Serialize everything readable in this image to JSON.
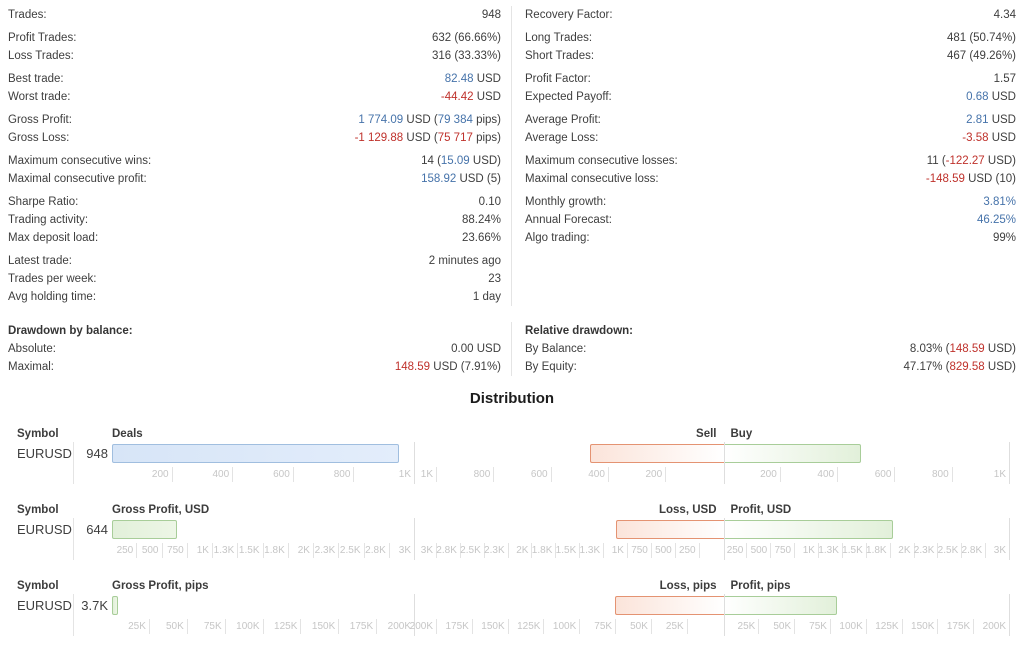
{
  "colors": {
    "accent_blue": "#4673aa",
    "accent_red": "#bf312b",
    "text": "#3e3e3e",
    "tick_label": "#c6c6c6",
    "divider": "#e4e4e4",
    "deals_bar_fill": "#dce9f8",
    "deals_bar_border": "#a0bedf",
    "profit_bar_fill": "#e6f2de",
    "profit_bar_border": "#a8cd99",
    "loss_bar_fill": "#fbe4da",
    "loss_bar_border": "#e49372"
  },
  "stats": {
    "bands": [
      {
        "rows": [
          {
            "group_start": false,
            "left": {
              "label": "Trades:",
              "parts": [
                {
                  "t": "948"
                }
              ]
            },
            "right": {
              "label": "Recovery Factor:",
              "parts": [
                {
                  "t": "4.34"
                }
              ]
            }
          },
          {
            "group_start": true,
            "left": {
              "label": "Profit Trades:",
              "parts": [
                {
                  "t": "632 (66.66%)"
                }
              ]
            },
            "right": {
              "label": "Long Trades:",
              "parts": [
                {
                  "t": "481 (50.74%)"
                }
              ]
            }
          },
          {
            "group_start": false,
            "left": {
              "label": "Loss Trades:",
              "parts": [
                {
                  "t": "316 (33.33%)"
                }
              ]
            },
            "right": {
              "label": "Short Trades:",
              "parts": [
                {
                  "t": "467 (49.26%)"
                }
              ]
            }
          },
          {
            "group_start": true,
            "left": {
              "label": "Best trade:",
              "parts": [
                {
                  "t": "82.48",
                  "c": "b"
                },
                {
                  "t": " USD"
                }
              ]
            },
            "right": {
              "label": "Profit Factor:",
              "parts": [
                {
                  "t": "1.57"
                }
              ]
            }
          },
          {
            "group_start": false,
            "left": {
              "label": "Worst trade:",
              "parts": [
                {
                  "t": "-44.42",
                  "c": "r"
                },
                {
                  "t": " USD"
                }
              ]
            },
            "right": {
              "label": "Expected Payoff:",
              "parts": [
                {
                  "t": "0.68",
                  "c": "b"
                },
                {
                  "t": " USD"
                }
              ]
            }
          },
          {
            "group_start": true,
            "left": {
              "label": "Gross Profit:",
              "parts": [
                {
                  "t": "1 774.09",
                  "c": "b"
                },
                {
                  "t": " USD ("
                },
                {
                  "t": "79 384",
                  "c": "b"
                },
                {
                  "t": " pips)"
                }
              ]
            },
            "right": {
              "label": "Average Profit:",
              "parts": [
                {
                  "t": "2.81",
                  "c": "b"
                },
                {
                  "t": " USD"
                }
              ]
            }
          },
          {
            "group_start": false,
            "left": {
              "label": "Gross Loss:",
              "parts": [
                {
                  "t": "-1 129.88",
                  "c": "r"
                },
                {
                  "t": " USD ("
                },
                {
                  "t": "75 717",
                  "c": "r"
                },
                {
                  "t": " pips)"
                }
              ]
            },
            "right": {
              "label": "Average Loss:",
              "parts": [
                {
                  "t": "-3.58",
                  "c": "r"
                },
                {
                  "t": " USD"
                }
              ]
            }
          },
          {
            "group_start": true,
            "left": {
              "label": "Maximum consecutive wins:",
              "parts": [
                {
                  "t": "14 ("
                },
                {
                  "t": "15.09",
                  "c": "b"
                },
                {
                  "t": " USD)"
                }
              ]
            },
            "right": {
              "label": "Maximum consecutive losses:",
              "parts": [
                {
                  "t": "11 ("
                },
                {
                  "t": "-122.27",
                  "c": "r"
                },
                {
                  "t": " USD)"
                }
              ]
            }
          },
          {
            "group_start": false,
            "left": {
              "label": "Maximal consecutive profit:",
              "parts": [
                {
                  "t": "158.92",
                  "c": "b"
                },
                {
                  "t": " USD (5)"
                }
              ]
            },
            "right": {
              "label": "Maximal consecutive loss:",
              "parts": [
                {
                  "t": "-148.59",
                  "c": "r"
                },
                {
                  "t": " USD (10)"
                }
              ]
            }
          },
          {
            "group_start": true,
            "left": {
              "label": "Sharpe Ratio:",
              "parts": [
                {
                  "t": "0.10"
                }
              ]
            },
            "right": {
              "label": "Monthly growth:",
              "parts": [
                {
                  "t": "3.81%",
                  "c": "b"
                }
              ]
            }
          },
          {
            "group_start": false,
            "left": {
              "label": "Trading activity:",
              "parts": [
                {
                  "t": "88.24%"
                }
              ]
            },
            "right": {
              "label": "Annual Forecast:",
              "parts": [
                {
                  "t": "46.25%",
                  "c": "b"
                }
              ]
            }
          },
          {
            "group_start": false,
            "left": {
              "label": "Max deposit load:",
              "parts": [
                {
                  "t": "23.66%"
                }
              ]
            },
            "right": {
              "label": "Algo trading:",
              "parts": [
                {
                  "t": "99%"
                }
              ]
            }
          },
          {
            "group_start": true,
            "left": {
              "label": "Latest trade:",
              "parts": [
                {
                  "t": "2 minutes ago"
                }
              ]
            },
            "right": null
          },
          {
            "group_start": false,
            "left": {
              "label": "Trades per week:",
              "parts": [
                {
                  "t": "23"
                }
              ]
            },
            "right": null
          },
          {
            "group_start": false,
            "left": {
              "label": "Avg holding time:",
              "parts": [
                {
                  "t": "1 day"
                }
              ]
            },
            "right": null
          }
        ]
      },
      {
        "rows": [
          {
            "group_start": false,
            "left": {
              "label": "Drawdown by balance:",
              "bold": true,
              "parts": []
            },
            "right": {
              "label": "Relative drawdown:",
              "bold": true,
              "parts": []
            }
          },
          {
            "group_start": false,
            "left": {
              "label": "Absolute:",
              "parts": [
                {
                  "t": "0.00 USD"
                }
              ]
            },
            "right": {
              "label": "By Balance:",
              "parts": [
                {
                  "t": "8.03% ("
                },
                {
                  "t": "148.59",
                  "c": "r"
                },
                {
                  "t": " USD)"
                }
              ]
            }
          },
          {
            "group_start": false,
            "left": {
              "label": "Maximal:",
              "parts": [
                {
                  "t": "148.59",
                  "c": "r"
                },
                {
                  "t": " USD (7.91%)"
                }
              ]
            },
            "right": {
              "label": "By Equity:",
              "parts": [
                {
                  "t": "47.17% ("
                },
                {
                  "t": "829.58",
                  "c": "r"
                },
                {
                  "t": " USD)"
                }
              ]
            }
          }
        ]
      }
    ]
  },
  "distribution": {
    "title": "Distribution",
    "symbol_header": "Symbol",
    "rows": [
      {
        "symbol": "EURUSD",
        "count": "948",
        "left_chart": {
          "header": "Deals",
          "max": 1000,
          "bar_value": 948,
          "bar_color": "blue",
          "ticks": [
            "200",
            "400",
            "600",
            "800",
            "1K"
          ]
        },
        "right_chart": {
          "header_left": "Sell",
          "header_right": "Buy",
          "max": 1000,
          "left_value": 467,
          "right_value": 481,
          "ticks": [
            "200",
            "400",
            "600",
            "800",
            "1K"
          ]
        }
      },
      {
        "symbol": "EURUSD",
        "count": "644",
        "left_chart": {
          "header": "Gross Profit, USD",
          "max": 3000,
          "bar_value": 644,
          "bar_color": "green",
          "ticks": [
            "250",
            "500",
            "750",
            "1K",
            "1.3K",
            "1.5K",
            "1.8K",
            "2K",
            "2.3K",
            "2.5K",
            "2.8K",
            "3K"
          ]
        },
        "right_chart": {
          "header_left": "Loss, USD",
          "header_right": "Profit, USD",
          "max": 3000,
          "left_value": 1129.88,
          "right_value": 1774.09,
          "ticks": [
            "250",
            "500",
            "750",
            "1K",
            "1.3K",
            "1.5K",
            "1.8K",
            "2K",
            "2.3K",
            "2.5K",
            "2.8K",
            "3K"
          ]
        }
      },
      {
        "symbol": "EURUSD",
        "count": "3.7K",
        "left_chart": {
          "header": "Gross Profit, pips",
          "max": 200000,
          "bar_value": 3700,
          "bar_color": "green",
          "ticks": [
            "25K",
            "50K",
            "75K",
            "100K",
            "125K",
            "150K",
            "175K",
            "200K"
          ]
        },
        "right_chart": {
          "header_left": "Loss, pips",
          "header_right": "Profit, pips",
          "max": 200000,
          "left_value": 75717,
          "right_value": 79384,
          "ticks": [
            "25K",
            "50K",
            "75K",
            "100K",
            "125K",
            "150K",
            "175K",
            "200K"
          ]
        }
      }
    ]
  },
  "chart_data": [
    {
      "type": "bar",
      "orientation": "horizontal",
      "symbol": "EURUSD",
      "left_panel": {
        "label": "Deals",
        "value": 948,
        "axis_max": 1000
      },
      "right_panel": {
        "sell": {
          "label": "Sell",
          "value": 467
        },
        "buy": {
          "label": "Buy",
          "value": 481
        },
        "axis_max_each_side": 1000
      }
    },
    {
      "type": "bar",
      "orientation": "horizontal",
      "symbol": "EURUSD",
      "left_panel": {
        "label": "Gross Profit, USD",
        "value": 644,
        "axis_max": 3000
      },
      "right_panel": {
        "loss": {
          "label": "Loss, USD",
          "value": 1129.88
        },
        "profit": {
          "label": "Profit, USD",
          "value": 1774.09
        },
        "axis_max_each_side": 3000
      }
    },
    {
      "type": "bar",
      "orientation": "horizontal",
      "symbol": "EURUSD",
      "left_panel": {
        "label": "Gross Profit, pips",
        "value": 3700,
        "axis_max": 200000
      },
      "right_panel": {
        "loss": {
          "label": "Loss, pips",
          "value": 75717
        },
        "profit": {
          "label": "Profit, pips",
          "value": 79384
        },
        "axis_max_each_side": 200000
      }
    }
  ]
}
